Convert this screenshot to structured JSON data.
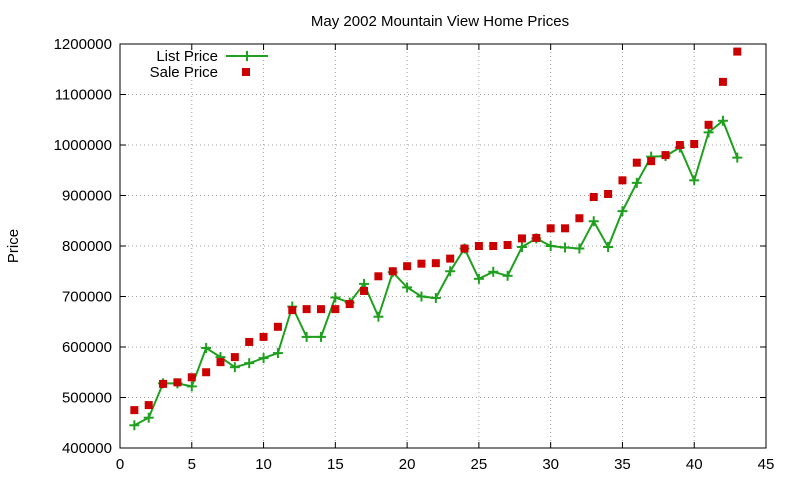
{
  "chart_data": {
    "type": "line",
    "title": "May 2002 Mountain View Home Prices",
    "xlabel": "",
    "ylabel": "Price",
    "xlim": [
      0,
      45
    ],
    "ylim": [
      400000,
      1200000
    ],
    "x_ticks": [
      0,
      5,
      10,
      15,
      20,
      25,
      30,
      35,
      40,
      45
    ],
    "y_ticks": [
      400000,
      500000,
      600000,
      700000,
      800000,
      900000,
      1000000,
      1100000,
      1200000
    ],
    "grid": true,
    "legend_position": "top-left",
    "series": [
      {
        "name": "List Price",
        "style": "line-with-plus-markers",
        "color": "#1fa01f",
        "points": [
          [
            1,
            445000
          ],
          [
            2,
            460000
          ],
          [
            3,
            528000
          ],
          [
            4,
            528000
          ],
          [
            5,
            522000
          ],
          [
            6,
            598000
          ],
          [
            7,
            580000
          ],
          [
            8,
            560000
          ],
          [
            9,
            568000
          ],
          [
            10,
            578000
          ],
          [
            11,
            588000
          ],
          [
            12,
            680000
          ],
          [
            13,
            620000
          ],
          [
            14,
            620000
          ],
          [
            15,
            698000
          ],
          [
            16,
            688000
          ],
          [
            17,
            725000
          ],
          [
            18,
            660000
          ],
          [
            19,
            748000
          ],
          [
            20,
            718000
          ],
          [
            21,
            700000
          ],
          [
            22,
            697000
          ],
          [
            23,
            750000
          ],
          [
            24,
            795000
          ],
          [
            25,
            735000
          ],
          [
            26,
            749000
          ],
          [
            27,
            741000
          ],
          [
            28,
            798000
          ],
          [
            29,
            815000
          ],
          [
            30,
            800000
          ],
          [
            31,
            797000
          ],
          [
            32,
            795000
          ],
          [
            33,
            849000
          ],
          [
            34,
            798000
          ],
          [
            35,
            869000
          ],
          [
            36,
            925000
          ],
          [
            37,
            977000
          ],
          [
            38,
            978000
          ],
          [
            39,
            995000
          ],
          [
            40,
            930000
          ],
          [
            41,
            1025000
          ],
          [
            42,
            1048000
          ],
          [
            43,
            975000
          ]
        ]
      },
      {
        "name": "Sale Price",
        "style": "square-markers",
        "color": "#cc0000",
        "points": [
          [
            1,
            475000
          ],
          [
            2,
            485000
          ],
          [
            3,
            527000
          ],
          [
            4,
            530000
          ],
          [
            5,
            540000
          ],
          [
            6,
            550000
          ],
          [
            7,
            570000
          ],
          [
            8,
            580000
          ],
          [
            9,
            610000
          ],
          [
            10,
            620000
          ],
          [
            11,
            640000
          ],
          [
            12,
            673000
          ],
          [
            13,
            675000
          ],
          [
            14,
            675000
          ],
          [
            15,
            675000
          ],
          [
            16,
            685000
          ],
          [
            17,
            711000
          ],
          [
            18,
            740000
          ],
          [
            19,
            750000
          ],
          [
            20,
            760000
          ],
          [
            21,
            765000
          ],
          [
            22,
            766000
          ],
          [
            23,
            775000
          ],
          [
            24,
            795000
          ],
          [
            25,
            800000
          ],
          [
            26,
            800000
          ],
          [
            27,
            802000
          ],
          [
            28,
            815000
          ],
          [
            29,
            816000
          ],
          [
            30,
            835000
          ],
          [
            31,
            835000
          ],
          [
            32,
            855000
          ],
          [
            33,
            897000
          ],
          [
            34,
            903000
          ],
          [
            35,
            930000
          ],
          [
            36,
            965000
          ],
          [
            37,
            968000
          ],
          [
            38,
            980000
          ],
          [
            39,
            1000000
          ],
          [
            40,
            1002000
          ],
          [
            41,
            1040000
          ],
          [
            42,
            1125000
          ],
          [
            43,
            1185000
          ]
        ]
      }
    ]
  }
}
